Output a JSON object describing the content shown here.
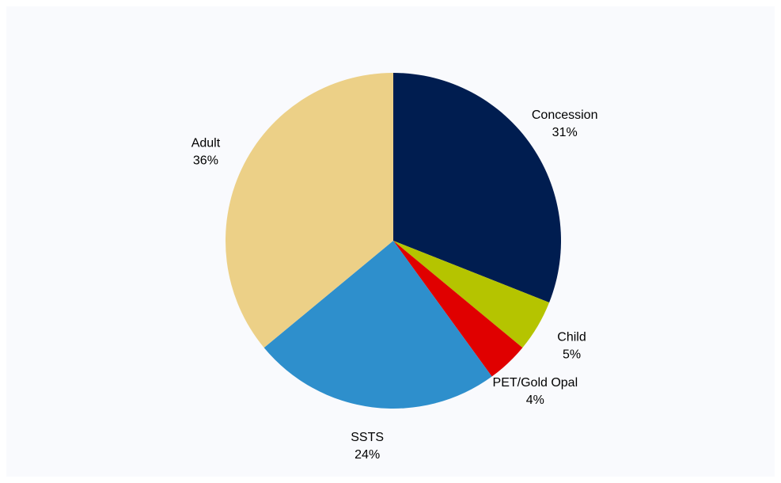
{
  "chart_data": {
    "type": "pie",
    "categories": [
      "Concession",
      "Child",
      "PET/Gold Opal",
      "SSTS",
      "Adult"
    ],
    "values": [
      31,
      5,
      4,
      24,
      36
    ],
    "value_labels": [
      "31%",
      "5%",
      "4%",
      "24%",
      "36%"
    ],
    "colors": [
      "#001d50",
      "#b5c400",
      "#e00000",
      "#2e8fcc",
      "#ecd087"
    ]
  }
}
